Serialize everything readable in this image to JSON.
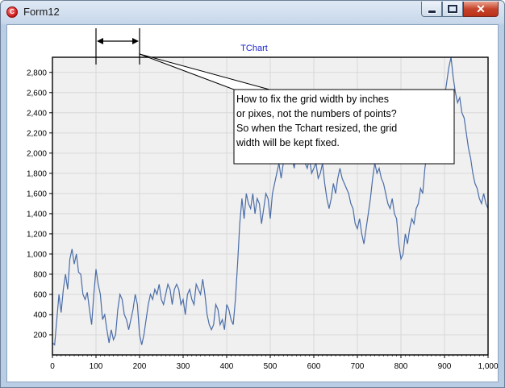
{
  "window": {
    "title": "Form12"
  },
  "chart": {
    "title": "TChart",
    "annotation": [
      "How to fix the grid width by inches",
      "or pixes, not the numbers of points?",
      "So when the Tchart resized, the grid",
      "width will be kept fixed."
    ],
    "colors": {
      "series": "#4a6da8",
      "title": "#1a24c8",
      "grid": "#d8d8d8",
      "panel": "#f0f0f0"
    }
  },
  "chart_data": {
    "type": "line",
    "title": "TChart",
    "xlabel": "",
    "ylabel": "",
    "xlim": [
      0,
      1000
    ],
    "ylim": [
      0,
      2950
    ],
    "xticks": [
      0,
      100,
      200,
      300,
      400,
      500,
      600,
      700,
      800,
      900,
      1000
    ],
    "yticks": [
      200,
      400,
      600,
      800,
      1000,
      1200,
      1400,
      1600,
      1800,
      2000,
      2200,
      2400,
      2600,
      2800
    ],
    "grid": true,
    "legend": "none",
    "series": [
      {
        "points": [
          [
            0,
            120
          ],
          [
            5,
            100
          ],
          [
            10,
            350
          ],
          [
            15,
            600
          ],
          [
            20,
            420
          ],
          [
            25,
            650
          ],
          [
            30,
            800
          ],
          [
            35,
            650
          ],
          [
            40,
            950
          ],
          [
            45,
            1050
          ],
          [
            50,
            900
          ],
          [
            55,
            1000
          ],
          [
            60,
            820
          ],
          [
            65,
            800
          ],
          [
            70,
            600
          ],
          [
            75,
            550
          ],
          [
            80,
            620
          ],
          [
            85,
            450
          ],
          [
            90,
            300
          ],
          [
            95,
            600
          ],
          [
            100,
            850
          ],
          [
            105,
            700
          ],
          [
            110,
            600
          ],
          [
            115,
            350
          ],
          [
            120,
            400
          ],
          [
            125,
            250
          ],
          [
            130,
            120
          ],
          [
            135,
            250
          ],
          [
            140,
            150
          ],
          [
            145,
            200
          ],
          [
            150,
            450
          ],
          [
            155,
            600
          ],
          [
            160,
            550
          ],
          [
            165,
            400
          ],
          [
            170,
            350
          ],
          [
            175,
            250
          ],
          [
            180,
            350
          ],
          [
            185,
            450
          ],
          [
            190,
            600
          ],
          [
            195,
            500
          ],
          [
            200,
            200
          ],
          [
            205,
            100
          ],
          [
            210,
            200
          ],
          [
            215,
            350
          ],
          [
            220,
            500
          ],
          [
            225,
            600
          ],
          [
            230,
            550
          ],
          [
            235,
            650
          ],
          [
            240,
            600
          ],
          [
            245,
            700
          ],
          [
            250,
            550
          ],
          [
            255,
            500
          ],
          [
            260,
            600
          ],
          [
            265,
            700
          ],
          [
            270,
            650
          ],
          [
            275,
            500
          ],
          [
            280,
            650
          ],
          [
            285,
            700
          ],
          [
            290,
            650
          ],
          [
            295,
            500
          ],
          [
            300,
            550
          ],
          [
            305,
            400
          ],
          [
            310,
            600
          ],
          [
            315,
            650
          ],
          [
            320,
            550
          ],
          [
            325,
            500
          ],
          [
            330,
            700
          ],
          [
            335,
            650
          ],
          [
            340,
            600
          ],
          [
            345,
            750
          ],
          [
            350,
            600
          ],
          [
            355,
            400
          ],
          [
            360,
            300
          ],
          [
            365,
            250
          ],
          [
            370,
            300
          ],
          [
            375,
            500
          ],
          [
            380,
            450
          ],
          [
            385,
            300
          ],
          [
            390,
            350
          ],
          [
            395,
            250
          ],
          [
            400,
            500
          ],
          [
            405,
            450
          ],
          [
            410,
            350
          ],
          [
            415,
            300
          ],
          [
            420,
            550
          ],
          [
            425,
            900
          ],
          [
            430,
            1300
          ],
          [
            435,
            1550
          ],
          [
            440,
            1350
          ],
          [
            445,
            1600
          ],
          [
            450,
            1500
          ],
          [
            455,
            1450
          ],
          [
            460,
            1600
          ],
          [
            465,
            1400
          ],
          [
            470,
            1550
          ],
          [
            475,
            1500
          ],
          [
            480,
            1300
          ],
          [
            485,
            1450
          ],
          [
            490,
            1600
          ],
          [
            495,
            1550
          ],
          [
            500,
            1350
          ],
          [
            505,
            1600
          ],
          [
            510,
            1700
          ],
          [
            515,
            1800
          ],
          [
            520,
            1900
          ],
          [
            525,
            1750
          ],
          [
            530,
            1900
          ],
          [
            535,
            2050
          ],
          [
            540,
            1900
          ],
          [
            545,
            2000
          ],
          [
            550,
            1950
          ],
          [
            555,
            1850
          ],
          [
            560,
            2000
          ],
          [
            565,
            1950
          ],
          [
            570,
            2050
          ],
          [
            575,
            2100
          ],
          [
            580,
            1900
          ],
          [
            585,
            1850
          ],
          [
            590,
            1950
          ],
          [
            595,
            1800
          ],
          [
            600,
            1850
          ],
          [
            605,
            1900
          ],
          [
            610,
            1750
          ],
          [
            615,
            1800
          ],
          [
            620,
            1900
          ],
          [
            625,
            1700
          ],
          [
            630,
            1550
          ],
          [
            635,
            1450
          ],
          [
            640,
            1550
          ],
          [
            645,
            1700
          ],
          [
            650,
            1600
          ],
          [
            655,
            1750
          ],
          [
            660,
            1850
          ],
          [
            665,
            1750
          ],
          [
            670,
            1700
          ],
          [
            675,
            1650
          ],
          [
            680,
            1600
          ],
          [
            685,
            1500
          ],
          [
            690,
            1450
          ],
          [
            695,
            1300
          ],
          [
            700,
            1250
          ],
          [
            705,
            1350
          ],
          [
            710,
            1200
          ],
          [
            715,
            1100
          ],
          [
            720,
            1250
          ],
          [
            725,
            1400
          ],
          [
            730,
            1550
          ],
          [
            735,
            1750
          ],
          [
            740,
            1900
          ],
          [
            745,
            1800
          ],
          [
            750,
            1850
          ],
          [
            755,
            1750
          ],
          [
            760,
            1700
          ],
          [
            765,
            1600
          ],
          [
            770,
            1500
          ],
          [
            775,
            1450
          ],
          [
            780,
            1550
          ],
          [
            785,
            1400
          ],
          [
            790,
            1350
          ],
          [
            795,
            1100
          ],
          [
            800,
            950
          ],
          [
            805,
            1000
          ],
          [
            810,
            1200
          ],
          [
            815,
            1100
          ],
          [
            820,
            1250
          ],
          [
            825,
            1350
          ],
          [
            830,
            1300
          ],
          [
            835,
            1450
          ],
          [
            840,
            1500
          ],
          [
            845,
            1650
          ],
          [
            850,
            1600
          ],
          [
            855,
            1850
          ],
          [
            860,
            2000
          ],
          [
            865,
            2100
          ],
          [
            870,
            2000
          ],
          [
            875,
            2200
          ],
          [
            880,
            2150
          ],
          [
            885,
            2300
          ],
          [
            890,
            2150
          ],
          [
            895,
            2400
          ],
          [
            900,
            2550
          ],
          [
            905,
            2700
          ],
          [
            910,
            2850
          ],
          [
            915,
            2950
          ],
          [
            920,
            2750
          ],
          [
            925,
            2600
          ],
          [
            930,
            2500
          ],
          [
            935,
            2550
          ],
          [
            940,
            2400
          ],
          [
            945,
            2350
          ],
          [
            950,
            2200
          ],
          [
            955,
            2050
          ],
          [
            960,
            1950
          ],
          [
            965,
            1800
          ],
          [
            970,
            1700
          ],
          [
            975,
            1650
          ],
          [
            980,
            1550
          ],
          [
            985,
            1500
          ],
          [
            990,
            1600
          ],
          [
            995,
            1500
          ],
          [
            1000,
            1450
          ]
        ]
      }
    ]
  }
}
